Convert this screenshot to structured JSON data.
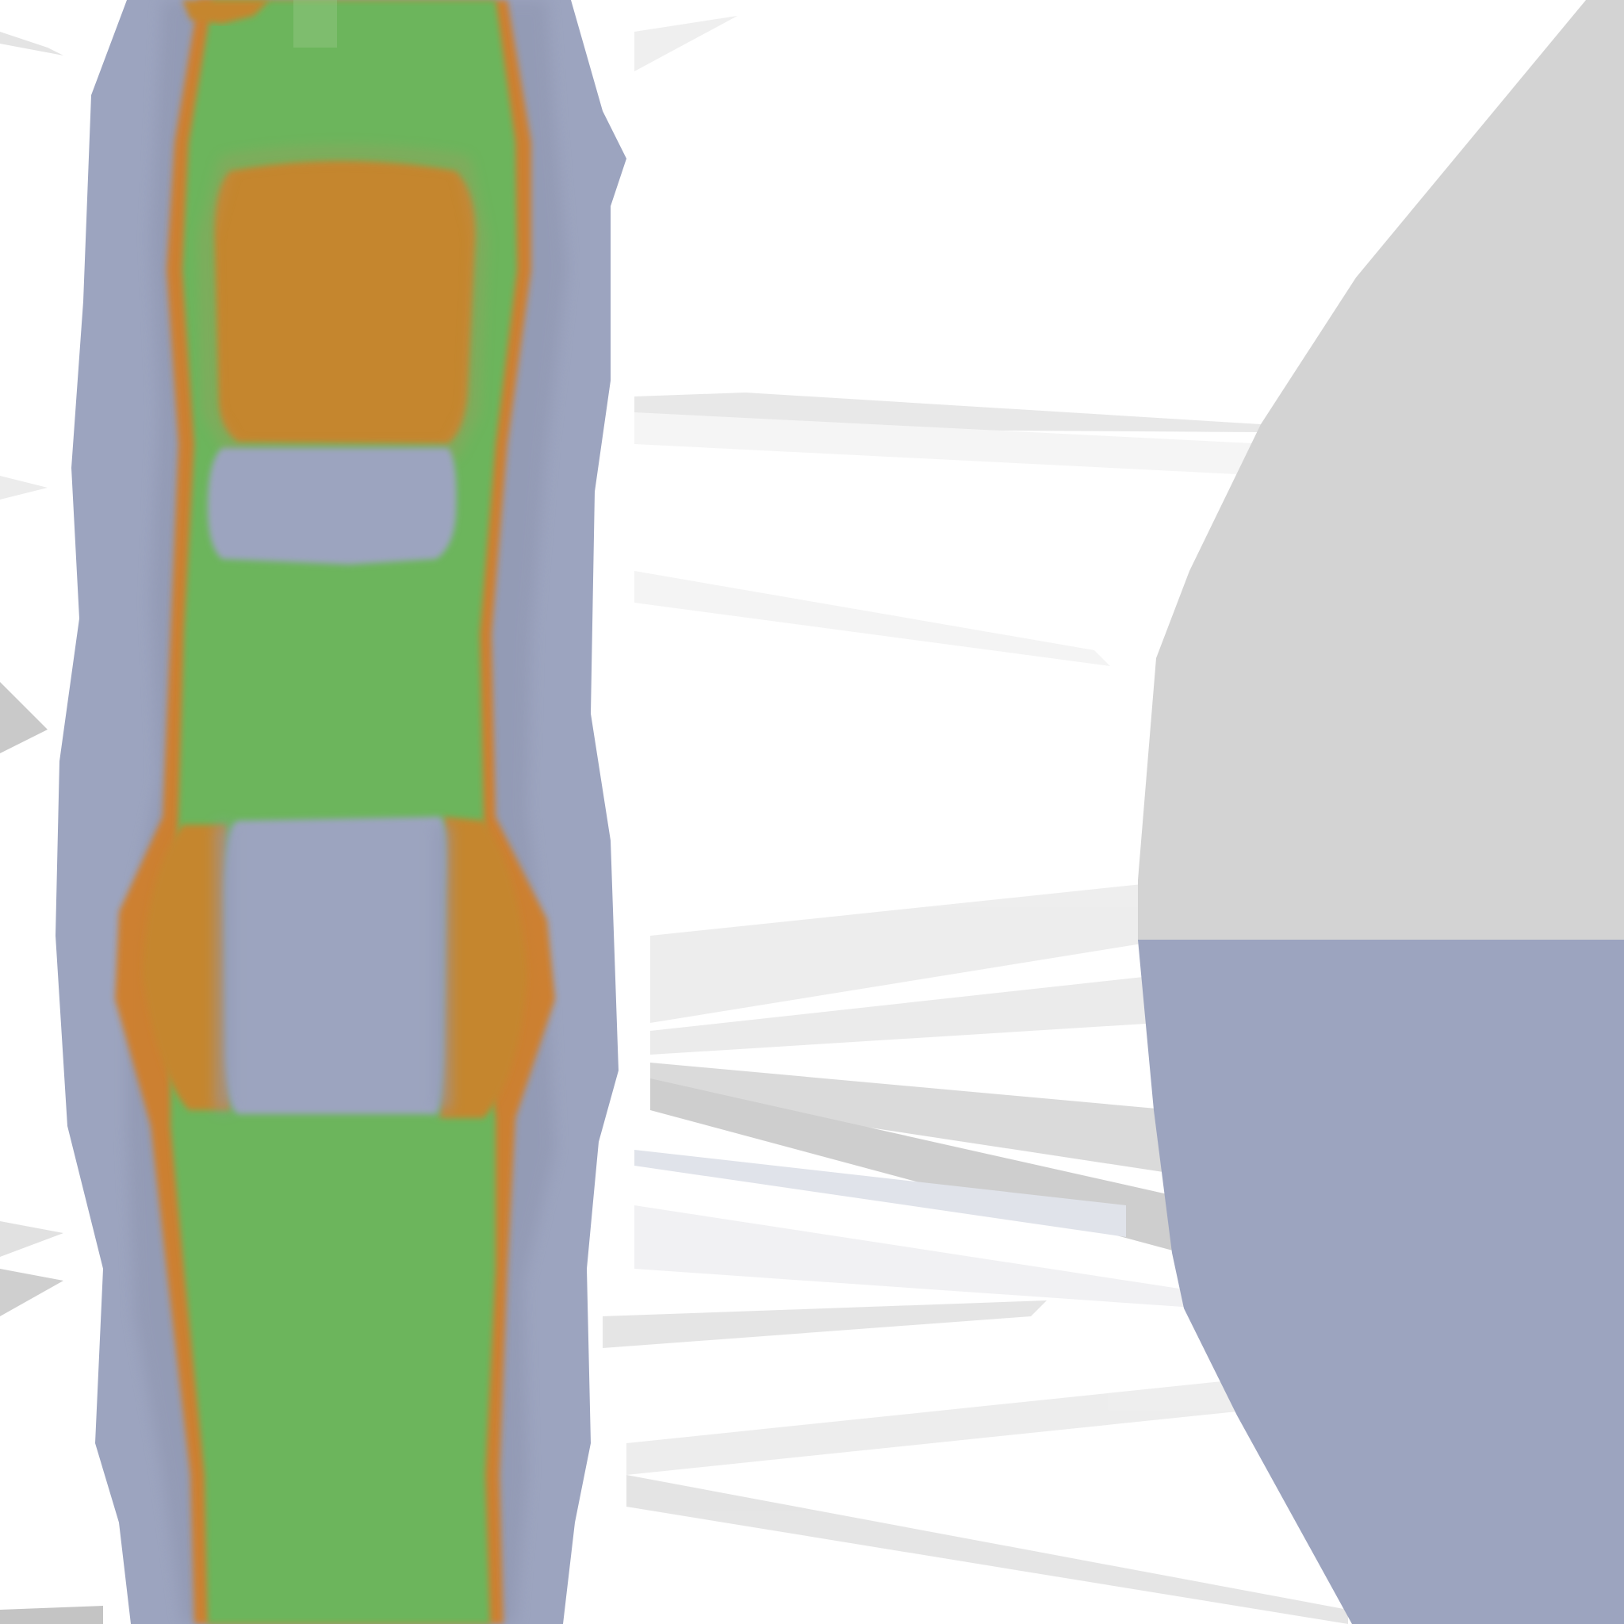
{
  "scene": {
    "description_visible_text": "",
    "colors": {
      "background": "#ffffff",
      "shadow_light": "#ececec",
      "shadow_mid": "#d6d6d6",
      "shadow_dark": "#c4c4c4",
      "periwinkle": "#9ca4bf",
      "periwinkle_dark": "#9299b3",
      "green": "#6cb55b",
      "orange": "#c5862d",
      "orange_edge": "#d07f2a",
      "gray_panel": "#d3d3d3"
    }
  }
}
